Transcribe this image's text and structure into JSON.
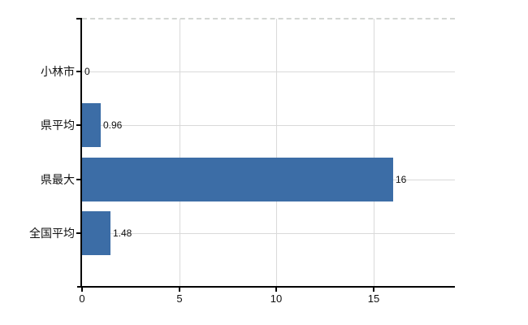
{
  "chart_data": {
    "type": "bar",
    "orientation": "horizontal",
    "title": "",
    "categories": [
      "小林市",
      "県平均",
      "県最大",
      "全国平均"
    ],
    "values": [
      0,
      0.96,
      16,
      1.48
    ],
    "value_labels": [
      "0",
      "0.96",
      "16",
      "1.48"
    ],
    "x_ticks": [
      "0",
      "5",
      "10",
      "15"
    ],
    "x_tick_values": [
      0,
      5,
      10,
      15
    ],
    "xlim": [
      0,
      19.2
    ],
    "grid": "on",
    "legend": "none",
    "colors": {
      "bar": "#3c6da6",
      "grid": "#d9d9d9",
      "top_border": "#d3d6d3",
      "axis": "#000000",
      "text": "#111111",
      "background": "#ffffff"
    }
  }
}
